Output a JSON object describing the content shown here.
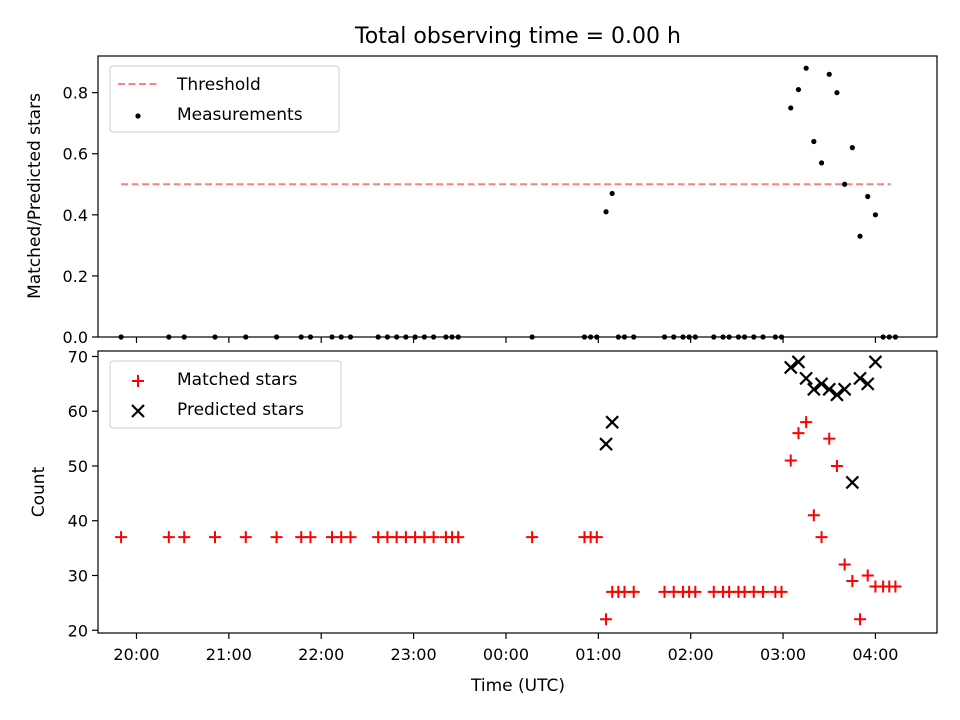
{
  "figure": {
    "title": "Total observing time = 0.00 h"
  },
  "chart_data": [
    {
      "type": "scatter",
      "ylabel": "Matched/Predicted stars",
      "xlabel": "",
      "xlim": [
        "19:35",
        "04:40"
      ],
      "ylim": [
        0,
        0.92
      ],
      "yticks": [
        0.0,
        0.2,
        0.4,
        0.6,
        0.8
      ],
      "ytick_labels": [
        "0.0",
        "0.2",
        "0.4",
        "0.6",
        "0.8"
      ],
      "legend_position": "top-left",
      "grid": false,
      "series": [
        {
          "name": "Threshold",
          "kind": "dashed-line",
          "color": "#ff8080",
          "x": [
            "19:50",
            "04:10"
          ],
          "y": [
            0.5,
            0.5
          ]
        },
        {
          "name": "Measurements",
          "kind": "dot",
          "color": "#000000",
          "x": [
            "19:50",
            "20:21",
            "20:31",
            "20:51",
            "21:11",
            "21:31",
            "21:47",
            "21:53",
            "22:07",
            "22:13",
            "22:19",
            "22:37",
            "22:43",
            "22:49",
            "22:55",
            "23:01",
            "23:07",
            "23:13",
            "23:21",
            "23:25",
            "23:29",
            "00:17",
            "00:51",
            "00:55",
            "00:59",
            "01:05",
            "01:09",
            "01:13",
            "01:17",
            "01:23",
            "01:43",
            "01:49",
            "01:55",
            "01:59",
            "02:03",
            "02:15",
            "02:21",
            "02:25",
            "02:31",
            "02:35",
            "02:41",
            "02:47",
            "02:55",
            "02:59",
            "03:05",
            "03:10",
            "03:15",
            "03:20",
            "03:25",
            "03:30",
            "03:35",
            "03:40",
            "03:45",
            "03:50",
            "03:55",
            "04:00",
            "04:05",
            "04:09",
            "04:13"
          ],
          "y": [
            0,
            0,
            0,
            0,
            0,
            0,
            0,
            0,
            0,
            0,
            0,
            0,
            0,
            0,
            0,
            0,
            0,
            0,
            0,
            0,
            0,
            0,
            0,
            0,
            0,
            0.41,
            0.47,
            0,
            0,
            0,
            0,
            0,
            0,
            0,
            0,
            0,
            0,
            0,
            0,
            0,
            0,
            0,
            0,
            0,
            0.75,
            0.81,
            0.88,
            0.64,
            0.57,
            0.86,
            0.8,
            0.5,
            0.62,
            0.33,
            0.46,
            0.4,
            0,
            0,
            0
          ]
        }
      ]
    },
    {
      "type": "scatter",
      "ylabel": "Count",
      "xlabel": "Time (UTC)",
      "xlim": [
        "19:35",
        "04:40"
      ],
      "ylim": [
        19.5,
        71
      ],
      "yticks": [
        20,
        30,
        40,
        50,
        60,
        70
      ],
      "ytick_labels": [
        "20",
        "30",
        "40",
        "50",
        "60",
        "70"
      ],
      "xticks": [
        "20:00",
        "21:00",
        "22:00",
        "23:00",
        "00:00",
        "01:00",
        "02:00",
        "03:00",
        "04:00"
      ],
      "legend_position": "top-left",
      "grid": false,
      "series": [
        {
          "name": "Matched stars",
          "kind": "plus",
          "color": "#ff0000",
          "x": [
            "19:50",
            "20:21",
            "20:31",
            "20:51",
            "21:11",
            "21:31",
            "21:47",
            "21:53",
            "22:07",
            "22:13",
            "22:19",
            "22:37",
            "22:43",
            "22:49",
            "22:55",
            "23:01",
            "23:07",
            "23:13",
            "23:21",
            "23:25",
            "23:29",
            "00:17",
            "00:51",
            "00:55",
            "00:59",
            "01:05",
            "01:09",
            "01:13",
            "01:17",
            "01:23",
            "01:43",
            "01:49",
            "01:55",
            "01:59",
            "02:03",
            "02:15",
            "02:21",
            "02:25",
            "02:31",
            "02:35",
            "02:41",
            "02:47",
            "02:55",
            "02:59",
            "03:05",
            "03:10",
            "03:15",
            "03:20",
            "03:25",
            "03:30",
            "03:35",
            "03:40",
            "03:45",
            "03:50",
            "03:55",
            "04:00",
            "04:05",
            "04:09",
            "04:13"
          ],
          "y": [
            37,
            37,
            37,
            37,
            37,
            37,
            37,
            37,
            37,
            37,
            37,
            37,
            37,
            37,
            37,
            37,
            37,
            37,
            37,
            37,
            37,
            37,
            37,
            37,
            37,
            22,
            27,
            27,
            27,
            27,
            27,
            27,
            27,
            27,
            27,
            27,
            27,
            27,
            27,
            27,
            27,
            27,
            27,
            27,
            51,
            56,
            58,
            41,
            37,
            55,
            50,
            32,
            29,
            22,
            30,
            28,
            28,
            28,
            28
          ]
        },
        {
          "name": "Predicted stars",
          "kind": "cross",
          "color": "#000000",
          "x": [
            "01:05",
            "01:09",
            "03:05",
            "03:10",
            "03:15",
            "03:20",
            "03:25",
            "03:30",
            "03:35",
            "03:40",
            "03:45",
            "03:50",
            "03:55",
            "04:00"
          ],
          "y": [
            54,
            58,
            68,
            69,
            66,
            64,
            65,
            64,
            63,
            64,
            47,
            66,
            65,
            69
          ]
        }
      ]
    }
  ]
}
